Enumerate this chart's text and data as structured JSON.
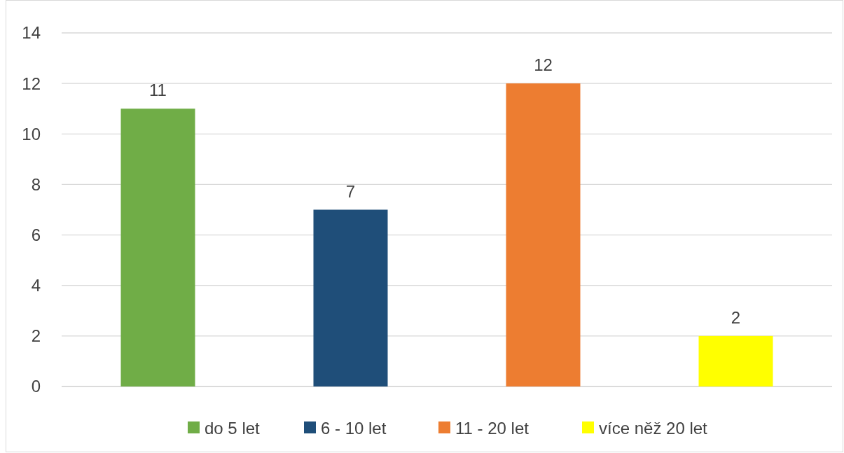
{
  "chart_data": {
    "type": "bar",
    "categories": [
      null,
      null,
      null,
      null
    ],
    "series": [
      {
        "name": "do 5 let",
        "color": "#70ad47",
        "values": [
          11,
          null,
          null,
          null
        ]
      },
      {
        "name": "6 - 10 let",
        "color": "#1f4e79",
        "values": [
          null,
          7,
          null,
          null
        ]
      },
      {
        "name": "11 - 20 let",
        "color": "#ed7d31",
        "values": [
          null,
          null,
          12,
          null
        ]
      },
      {
        "name": "více něž 20 let",
        "color": "#ffff00",
        "values": [
          null,
          null,
          null,
          2
        ]
      }
    ],
    "ylim": [
      0,
      14
    ],
    "yticks": [
      0,
      2,
      4,
      6,
      8,
      10,
      12,
      14
    ],
    "grid": "y",
    "legend": "bottom",
    "data_labels": true
  }
}
